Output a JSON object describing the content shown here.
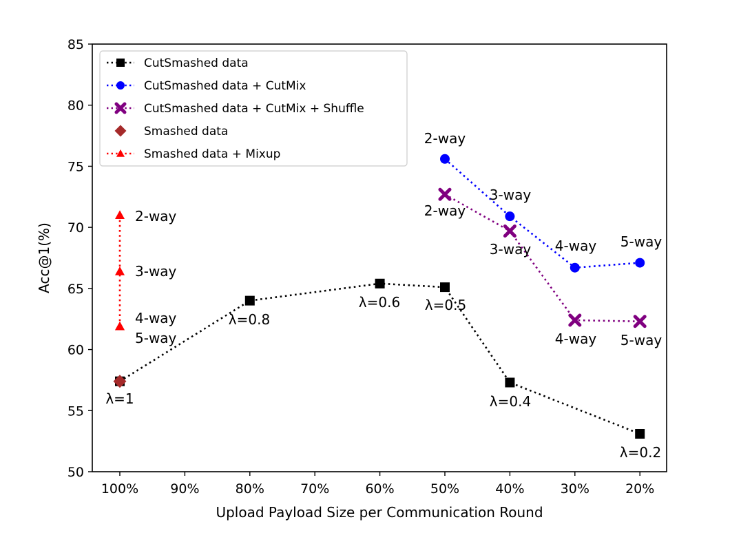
{
  "chart_data": {
    "type": "line",
    "title": "",
    "xlabel": "Upload Payload Size per Communication Round",
    "ylabel": "Acc@1(%)",
    "x_categories": [
      "100%",
      "90%",
      "80%",
      "70%",
      "60%",
      "50%",
      "40%",
      "30%",
      "20%"
    ],
    "yticks": [
      "50",
      "55",
      "60",
      "65",
      "70",
      "75",
      "80",
      "85"
    ],
    "ylim": [
      50,
      85
    ],
    "grid": false,
    "legend_position": "top-left",
    "series": [
      {
        "name": "CutSmashed data",
        "color": "#000000",
        "marker": "square",
        "linestyle": "dotted",
        "points": [
          {
            "x": "100%",
            "y": 57.4,
            "label": "λ=1"
          },
          {
            "x": "80%",
            "y": 64.0,
            "label": "λ=0.8"
          },
          {
            "x": "60%",
            "y": 65.4,
            "label": "λ=0.6"
          },
          {
            "x": "50%",
            "y": 65.1,
            "label": "λ=0.5"
          },
          {
            "x": "40%",
            "y": 57.3,
            "label": "λ=0.4"
          },
          {
            "x": "20%",
            "y": 53.1,
            "label": "λ=0.2"
          }
        ]
      },
      {
        "name": "CutSmashed data + CutMix",
        "color": "#0000ff",
        "marker": "circle",
        "linestyle": "dotted",
        "points": [
          {
            "x": "50%",
            "y": 75.6,
            "label": "2-way"
          },
          {
            "x": "40%",
            "y": 70.9,
            "label": "3-way"
          },
          {
            "x": "30%",
            "y": 66.7,
            "label": "4-way"
          },
          {
            "x": "20%",
            "y": 67.1,
            "label": "5-way"
          }
        ]
      },
      {
        "name": "CutSmashed data + CutMix + Shuffle",
        "color": "#800080",
        "marker": "x",
        "linestyle": "dotted",
        "points": [
          {
            "x": "50%",
            "y": 72.7,
            "label": "2-way"
          },
          {
            "x": "40%",
            "y": 69.7,
            "label": "3-way"
          },
          {
            "x": "30%",
            "y": 62.4,
            "label": "4-way"
          },
          {
            "x": "20%",
            "y": 62.3,
            "label": "5-way"
          }
        ]
      },
      {
        "name": "Smashed data",
        "color": "#a52a2a",
        "marker": "diamond",
        "linestyle": "none",
        "points": [
          {
            "x": "100%",
            "y": 57.4,
            "label": ""
          }
        ]
      },
      {
        "name": "Smashed data + Mixup",
        "color": "#ff0000",
        "marker": "triangle",
        "linestyle": "dotted",
        "points": [
          {
            "x": "100%",
            "y": 71.0,
            "label": "2-way"
          },
          {
            "x": "100%",
            "y": 66.4,
            "label": "3-way"
          },
          {
            "x": "100%",
            "y": 61.9,
            "label": "4-way"
          },
          {
            "x": "100%",
            "y": 61.9,
            "label": "5-way"
          }
        ]
      }
    ]
  }
}
